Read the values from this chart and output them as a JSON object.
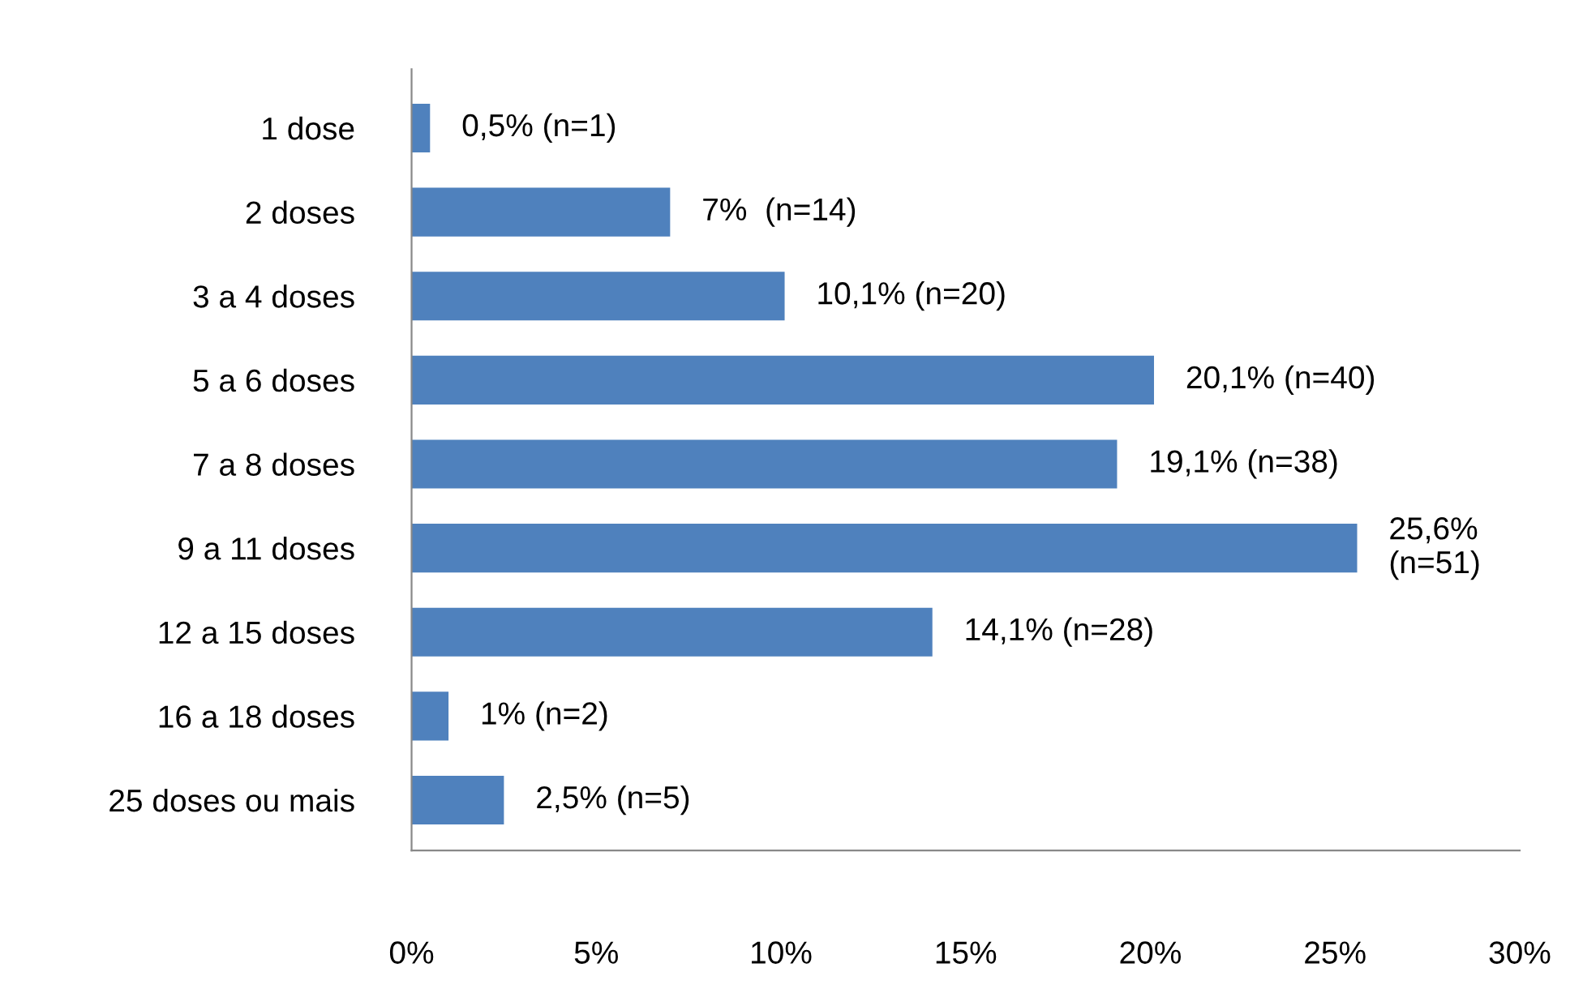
{
  "chart_data": {
    "type": "bar",
    "orientation": "horizontal",
    "categories": [
      "1 dose",
      "2 doses",
      "3 a 4 doses",
      "5 a 6 doses",
      "7 a 8 doses",
      "9 a 11 doses",
      "12 a 15 doses",
      "16 a 18 doses",
      "25 doses ou mais"
    ],
    "values": [
      0.5,
      7,
      10.1,
      20.1,
      19.1,
      25.6,
      14.1,
      1,
      2.5
    ],
    "value_labels": [
      "0,5% (n=1)",
      "7%  (n=14)",
      "10,1% (n=20)",
      "20,1% (n=40)",
      "19,1% (n=38)",
      "25,6%\n(n=51)",
      "14,1% (n=28)",
      "1% (n=2)",
      "2,5% (n=5)"
    ],
    "color": "#4f81bd",
    "xlim": [
      0,
      30
    ],
    "xticks": [
      {
        "value": 0,
        "label": "0%"
      },
      {
        "value": 5,
        "label": "5%"
      },
      {
        "value": 10,
        "label": "10%"
      },
      {
        "value": 15,
        "label": "15%"
      },
      {
        "value": 20,
        "label": "20%"
      },
      {
        "value": 25,
        "label": "25%"
      },
      {
        "value": 30,
        "label": "30%"
      }
    ],
    "grid": false,
    "legend": false
  }
}
